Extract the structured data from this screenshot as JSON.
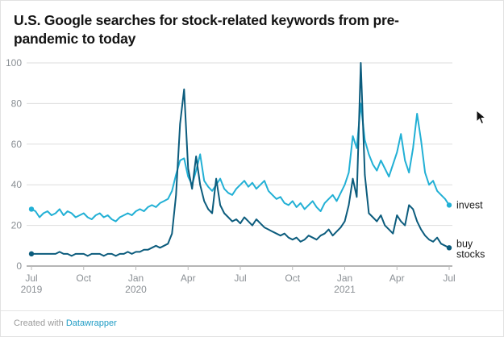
{
  "title": "U.S. Google searches for stock-related keywords from pre-pandemic to today",
  "footer": {
    "created_with": "Created with",
    "link": "Datawrapper"
  },
  "colors": {
    "invest": "#22b0d5",
    "buy_stocks": "#0c5c7d",
    "grid": "#dedede",
    "baseline": "#6b6b6b",
    "tick": "#bbbbbb",
    "axis_text": "#8a8f94",
    "label_text": "#1a1a1a",
    "link": "#1d9bc4"
  },
  "chart_data": {
    "type": "line",
    "title": "U.S. Google searches for stock-related keywords from pre-pandemic to today",
    "x_unit": "week",
    "x_range": [
      "Jul 2019",
      "Jul 2021"
    ],
    "ylim": [
      0,
      100
    ],
    "yticks": [
      0,
      20,
      40,
      60,
      80,
      100
    ],
    "grid": true,
    "legend_position": "end-of-line",
    "xticks": [
      {
        "pos": 0,
        "month": "Jul",
        "year": "2019"
      },
      {
        "pos": 13,
        "month": "Oct",
        "year": ""
      },
      {
        "pos": 26,
        "month": "Jan",
        "year": "2020"
      },
      {
        "pos": 39,
        "month": "Apr",
        "year": ""
      },
      {
        "pos": 52,
        "month": "Jul",
        "year": ""
      },
      {
        "pos": 65,
        "month": "Oct",
        "year": ""
      },
      {
        "pos": 78,
        "month": "Jan",
        "year": "2021"
      },
      {
        "pos": 91,
        "month": "Apr",
        "year": ""
      },
      {
        "pos": 104,
        "month": "Jul",
        "year": ""
      }
    ],
    "series": [
      {
        "name": "invest",
        "color": "#22b0d5",
        "values": [
          28,
          27,
          24,
          26,
          27,
          25,
          26,
          28,
          25,
          27,
          26,
          24,
          25,
          26,
          24,
          23,
          25,
          26,
          24,
          25,
          23,
          22,
          24,
          25,
          26,
          25,
          27,
          28,
          27,
          29,
          30,
          29,
          31,
          32,
          33,
          37,
          45,
          52,
          53,
          44,
          40,
          47,
          55,
          42,
          39,
          37,
          40,
          43,
          38,
          36,
          35,
          38,
          40,
          42,
          39,
          41,
          38,
          40,
          42,
          37,
          35,
          33,
          34,
          31,
          30,
          32,
          29,
          31,
          28,
          30,
          32,
          29,
          27,
          31,
          33,
          35,
          32,
          36,
          40,
          46,
          64,
          58,
          80,
          62,
          55,
          50,
          47,
          52,
          48,
          44,
          50,
          56,
          65,
          52,
          46,
          58,
          75,
          62,
          46,
          40,
          42,
          37,
          35,
          33,
          30
        ]
      },
      {
        "name": "buy stocks",
        "color": "#0c5c7d",
        "values": [
          6,
          6,
          6,
          6,
          6,
          6,
          6,
          7,
          6,
          6,
          5,
          6,
          6,
          6,
          5,
          6,
          6,
          6,
          5,
          6,
          6,
          5,
          6,
          6,
          7,
          6,
          7,
          7,
          8,
          8,
          9,
          10,
          9,
          10,
          11,
          16,
          35,
          70,
          87,
          48,
          38,
          54,
          40,
          32,
          28,
          26,
          43,
          30,
          26,
          24,
          22,
          23,
          21,
          24,
          22,
          20,
          23,
          21,
          19,
          18,
          17,
          16,
          15,
          16,
          14,
          13,
          14,
          12,
          13,
          15,
          14,
          13,
          15,
          16,
          18,
          15,
          17,
          19,
          22,
          30,
          43,
          34,
          100,
          45,
          26,
          24,
          22,
          25,
          20,
          18,
          16,
          25,
          22,
          20,
          30,
          28,
          22,
          18,
          15,
          13,
          12,
          14,
          11,
          10,
          9
        ]
      }
    ]
  }
}
